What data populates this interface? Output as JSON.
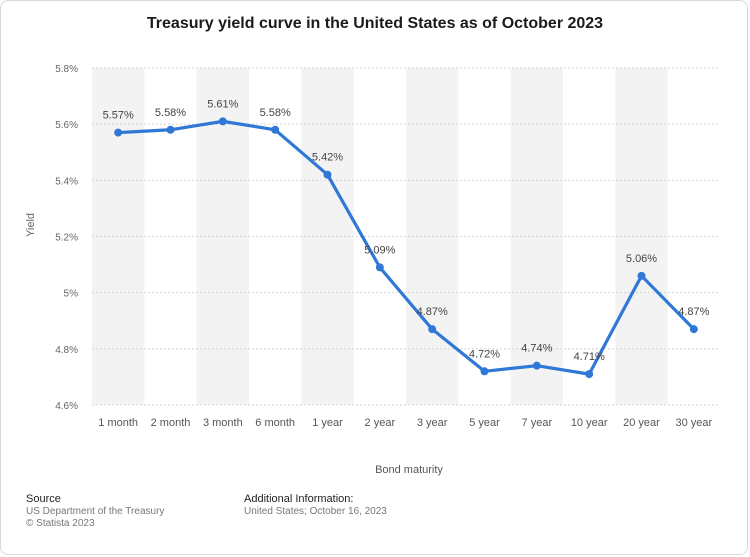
{
  "chart_data": {
    "type": "line",
    "title": "Treasury yield curve in the United States as of October 2023",
    "xlabel": "Bond maturity",
    "ylabel": "Yield",
    "categories": [
      "1 month",
      "2 month",
      "3 month",
      "6 month",
      "1 year",
      "2 year",
      "3 year",
      "5 year",
      "7 year",
      "10 year",
      "20 year",
      "30 year"
    ],
    "series": [
      {
        "values": [
          5.57,
          5.58,
          5.61,
          5.58,
          5.42,
          5.09,
          4.87,
          4.72,
          4.74,
          4.71,
          5.06,
          4.87
        ],
        "labels": [
          "5.57%",
          "5.58%",
          "5.61%",
          "5.58%",
          "5.42%",
          "5.09%",
          "4.87%",
          "4.72%",
          "4.74%",
          "4.71%",
          "5.06%",
          "4.87%"
        ],
        "color": "#2f78d6"
      }
    ],
    "ylim": [
      4.6,
      5.8
    ],
    "y_ticks": [
      {
        "value": 4.6,
        "label": "4.6%"
      },
      {
        "value": 4.8,
        "label": "4.8%"
      },
      {
        "value": 5.0,
        "label": "5%"
      },
      {
        "value": 5.2,
        "label": "5.2%"
      },
      {
        "value": 5.4,
        "label": "5.4%"
      },
      {
        "value": 5.6,
        "label": "5.6%"
      },
      {
        "value": 5.8,
        "label": "5.8%"
      }
    ],
    "grid": true,
    "legend": "none"
  },
  "footer": {
    "source_heading": "Source",
    "source_lines": [
      "US Department of the Treasury",
      "© Statista 2023"
    ],
    "info_heading": "Additional Information:",
    "info_lines": [
      "United States; October 16, 2023"
    ]
  },
  "colors": {
    "line": "#2f78d6",
    "band": "#f3f3f3",
    "gridline": "#d4d4d4"
  }
}
